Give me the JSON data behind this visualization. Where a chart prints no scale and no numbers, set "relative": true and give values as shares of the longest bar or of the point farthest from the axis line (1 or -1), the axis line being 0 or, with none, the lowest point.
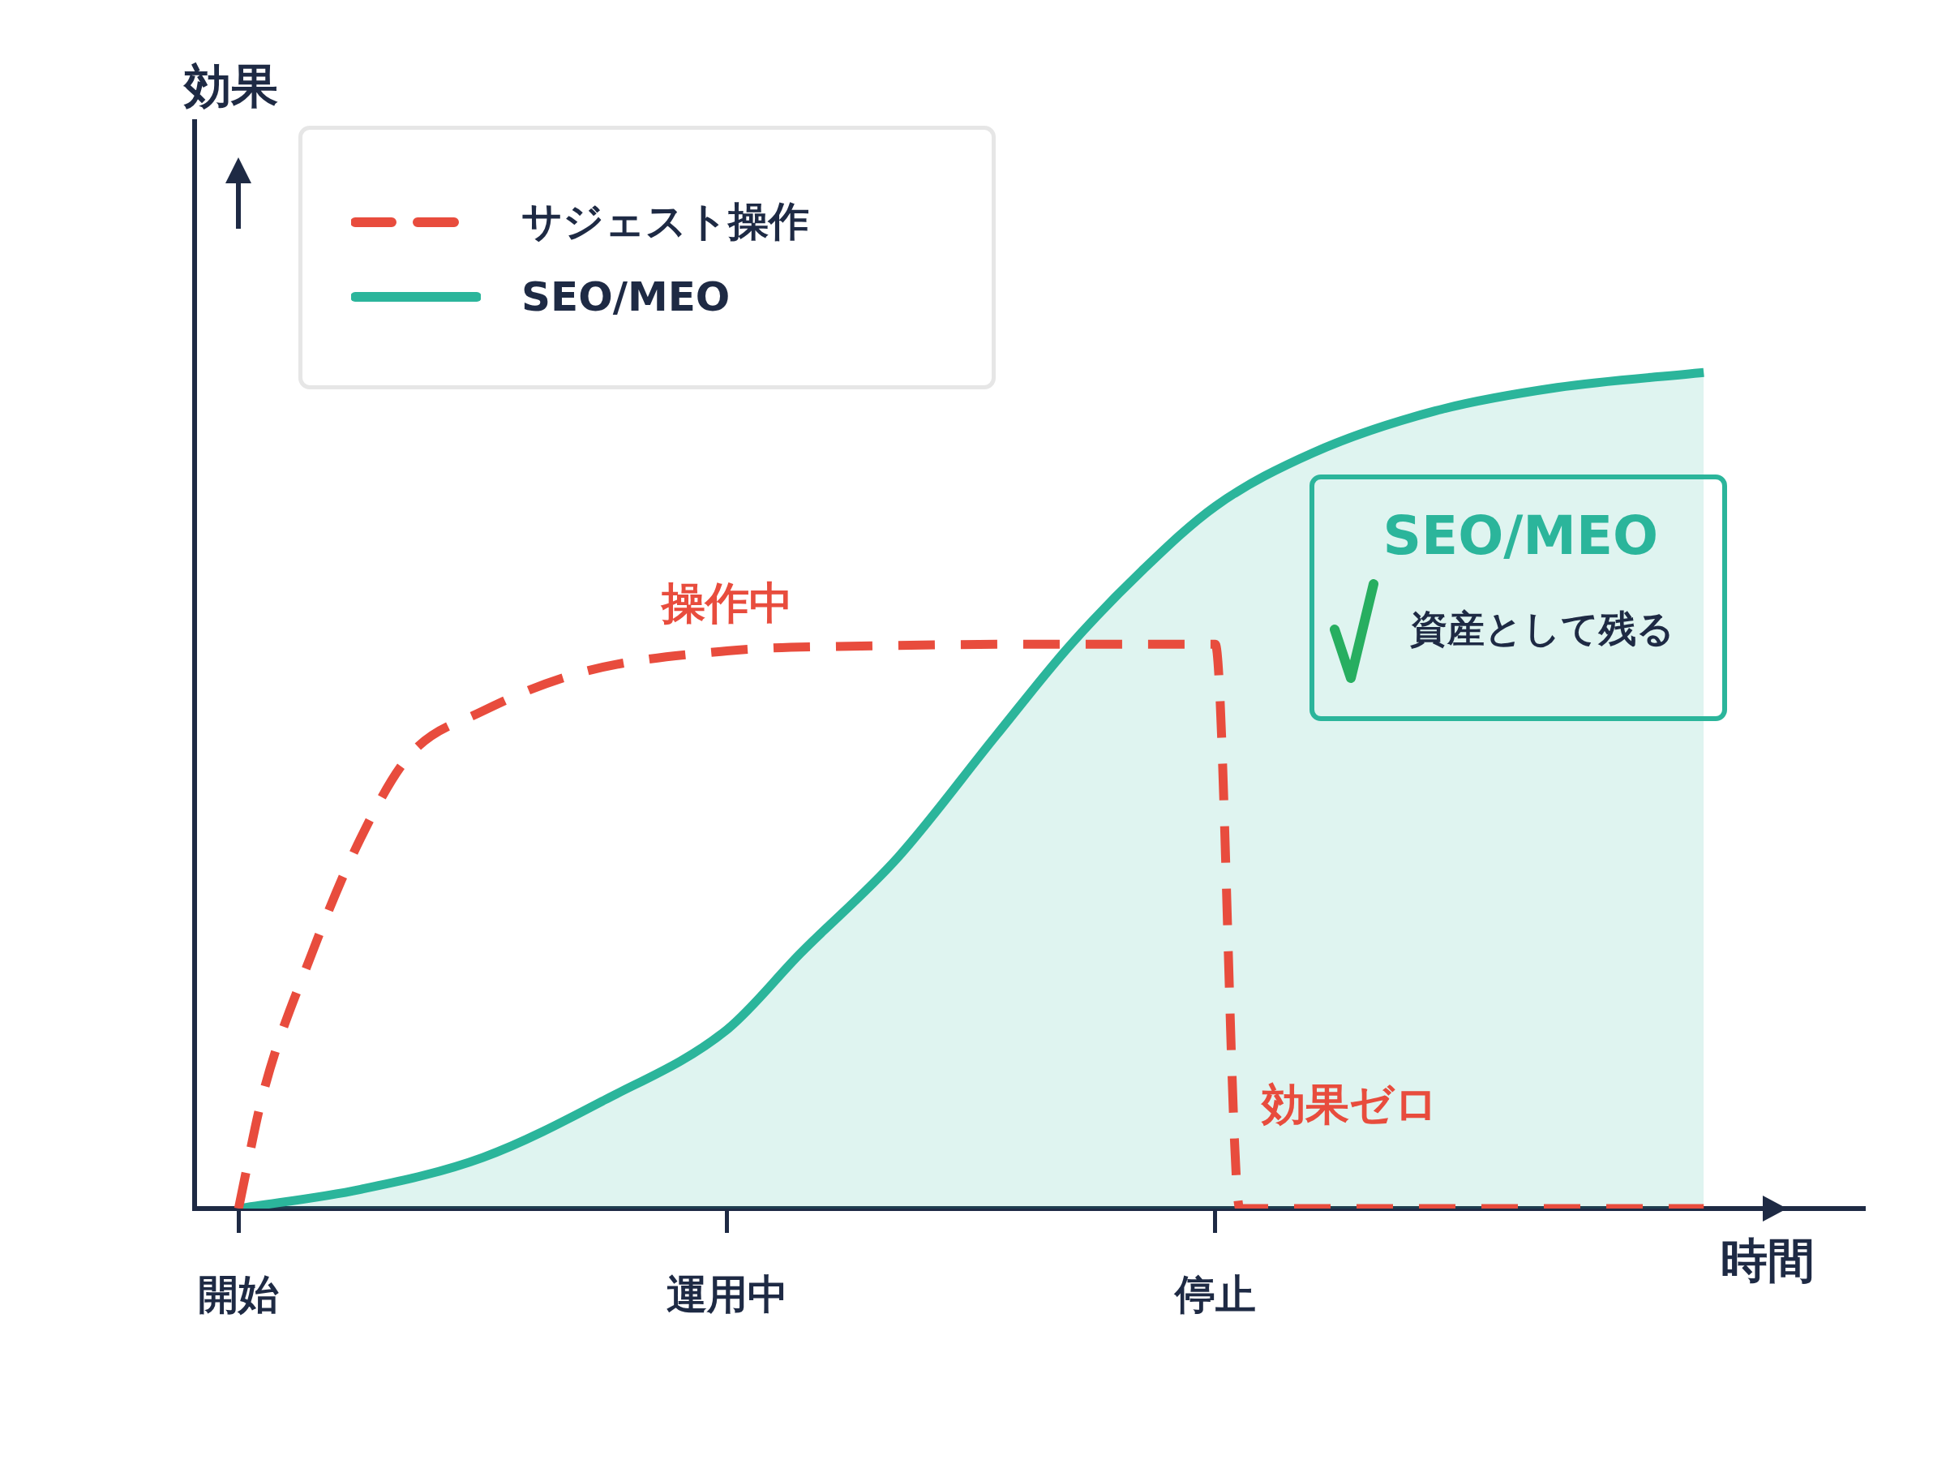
{
  "chart_data": {
    "type": "line",
    "relative": true,
    "xlabel": "時間",
    "categories": [
      "開始",
      null,
      null,
      null,
      null,
      null,
      null,
      null,
      null,
      null,
      null,
      null,
      null,
      null,
      null,
      null,
      null,
      null,
      null,
      null,
      "運用中",
      null,
      null,
      null,
      null,
      null,
      null,
      null,
      null,
      null,
      null,
      null,
      null,
      null,
      null,
      null,
      null,
      null,
      null,
      null,
      "停止",
      null,
      null,
      null,
      null,
      null,
      null,
      null,
      null,
      null,
      null,
      null,
      null,
      null,
      null,
      null,
      null,
      null,
      null,
      null,
      null
    ],
    "series": [
      {
        "name": "サジェスト操作",
        "type": "line",
        "line_style": "dashed",
        "color": "#e84c3d",
        "values": [
          0,
          0.137,
          null,
          0.305,
          null,
          0.443,
          null,
          0.542,
          null,
          null,
          0.595,
          null,
          null,
          null,
          0.641,
          null,
          null,
          null,
          null,
          null,
          0.667,
          null,
          null,
          null,
          null,
          null,
          0.673,
          null,
          null,
          null,
          null,
          null,
          null,
          0.675,
          null,
          null,
          null,
          null,
          null,
          null,
          0.675,
          0,
          null,
          null,
          null,
          null,
          null,
          null,
          null,
          null,
          null,
          null,
          null,
          null,
          null,
          null,
          null,
          null,
          null,
          null,
          0
        ]
      },
      {
        "name": "SEO/MEO",
        "type": "area",
        "color": "#2bb59b",
        "values": [
          0,
          null,
          null,
          null,
          null,
          0.023,
          null,
          null,
          null,
          null,
          0.061,
          null,
          null,
          null,
          null,
          0.13,
          null,
          null,
          null,
          null,
          0.214,
          null,
          null,
          0.305,
          null,
          null,
          null,
          0.42,
          null,
          null,
          null,
          0.565,
          null,
          null,
          0.672,
          null,
          null,
          0.763,
          null,
          null,
          0.84,
          null,
          null,
          null,
          0.904,
          null,
          null,
          null,
          null,
          0.954,
          null,
          null,
          null,
          null,
          0.982,
          null,
          null,
          null,
          null,
          null,
          1
        ]
      }
    ],
    "legend": "top left",
    "marker": "none",
    "annotations": [
      "操作中",
      "効果ゼロ",
      "SEO/MEO",
      "資産として残る",
      "効果"
    ]
  }
}
